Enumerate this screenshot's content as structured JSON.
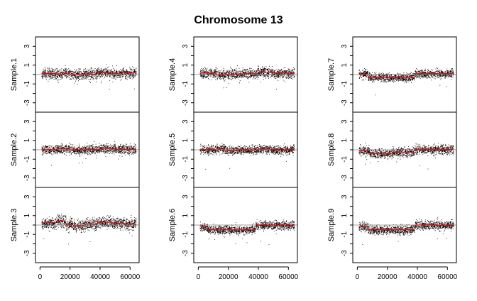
{
  "chart_data": {
    "type": "scatter",
    "title": "Chromosome 13",
    "x_ticks": [
      "0",
      "20000",
      "40000",
      "60000"
    ],
    "xlim": [
      -3000,
      66000
    ],
    "y_ticks": [
      "-3",
      "-1",
      "1",
      "3"
    ],
    "y_minor_ticks": [
      -2,
      0,
      2
    ],
    "ylim": [
      -4,
      4
    ],
    "grid": false,
    "colors": {
      "points": "#000000",
      "segments": "#ff0000",
      "zero_line": "#808080"
    },
    "panels": [
      {
        "name": "Sample.1",
        "column": 0,
        "row": 0,
        "noise": 0.26,
        "segments": [
          {
            "x0": 1000,
            "x1": 10000,
            "y": 0.12
          },
          {
            "x0": 10000,
            "x1": 15000,
            "y": 0.05
          },
          {
            "x0": 15000,
            "x1": 20000,
            "y": 0.15
          },
          {
            "x0": 20000,
            "x1": 27000,
            "y": 0.0
          },
          {
            "x0": 27000,
            "x1": 38000,
            "y": 0.05
          },
          {
            "x0": 38000,
            "x1": 48000,
            "y": 0.18
          },
          {
            "x0": 48000,
            "x1": 55000,
            "y": 0.1
          },
          {
            "x0": 55000,
            "x1": 64000,
            "y": 0.18
          }
        ]
      },
      {
        "name": "Sample.2",
        "column": 0,
        "row": 1,
        "noise": 0.24,
        "segments": [
          {
            "x0": 1000,
            "x1": 12000,
            "y": 0.02
          },
          {
            "x0": 12000,
            "x1": 20000,
            "y": 0.1
          },
          {
            "x0": 20000,
            "x1": 30000,
            "y": 0.0
          },
          {
            "x0": 30000,
            "x1": 40000,
            "y": 0.05
          },
          {
            "x0": 40000,
            "x1": 50000,
            "y": 0.12
          },
          {
            "x0": 50000,
            "x1": 64000,
            "y": 0.05
          }
        ]
      },
      {
        "name": "Sample.3",
        "column": 0,
        "row": 2,
        "noise": 0.3,
        "segments": [
          {
            "x0": 1000,
            "x1": 11000,
            "y": 0.25
          },
          {
            "x0": 11000,
            "x1": 17000,
            "y": 0.45
          },
          {
            "x0": 17000,
            "x1": 22000,
            "y": 0.05
          },
          {
            "x0": 22000,
            "x1": 30000,
            "y": -0.1
          },
          {
            "x0": 30000,
            "x1": 38000,
            "y": 0.1
          },
          {
            "x0": 38000,
            "x1": 48000,
            "y": 0.3
          },
          {
            "x0": 48000,
            "x1": 56000,
            "y": 0.2
          },
          {
            "x0": 56000,
            "x1": 64000,
            "y": 0.1
          }
        ]
      },
      {
        "name": "Sample.4",
        "column": 1,
        "row": 0,
        "noise": 0.26,
        "segments": [
          {
            "x0": 1000,
            "x1": 12000,
            "y": 0.15
          },
          {
            "x0": 12000,
            "x1": 20000,
            "y": 0.0
          },
          {
            "x0": 20000,
            "x1": 30000,
            "y": 0.05
          },
          {
            "x0": 30000,
            "x1": 40000,
            "y": 0.1
          },
          {
            "x0": 40000,
            "x1": 50000,
            "y": 0.25
          },
          {
            "x0": 50000,
            "x1": 64000,
            "y": 0.15
          }
        ]
      },
      {
        "name": "Sample.5",
        "column": 1,
        "row": 1,
        "noise": 0.22,
        "segments": [
          {
            "x0": 1000,
            "x1": 12000,
            "y": 0.02
          },
          {
            "x0": 12000,
            "x1": 18000,
            "y": 0.1
          },
          {
            "x0": 18000,
            "x1": 25000,
            "y": -0.1
          },
          {
            "x0": 25000,
            "x1": 40000,
            "y": 0.0
          },
          {
            "x0": 40000,
            "x1": 48000,
            "y": 0.08
          },
          {
            "x0": 48000,
            "x1": 64000,
            "y": 0.0
          }
        ]
      },
      {
        "name": "Sample.6",
        "column": 1,
        "row": 2,
        "noise": 0.22,
        "segments": [
          {
            "x0": 1000,
            "x1": 6000,
            "y": -0.2
          },
          {
            "x0": 6000,
            "x1": 38000,
            "y": -0.5
          },
          {
            "x0": 38000,
            "x1": 64000,
            "y": 0.0
          }
        ]
      },
      {
        "name": "Sample.7",
        "column": 2,
        "row": 0,
        "noise": 0.22,
        "segments": [
          {
            "x0": 1000,
            "x1": 7000,
            "y": 0.05
          },
          {
            "x0": 7000,
            "x1": 20000,
            "y": -0.3
          },
          {
            "x0": 20000,
            "x1": 38000,
            "y": -0.3
          },
          {
            "x0": 38000,
            "x1": 64000,
            "y": 0.1
          }
        ]
      },
      {
        "name": "Sample.8",
        "column": 2,
        "row": 1,
        "noise": 0.24,
        "segments": [
          {
            "x0": 1000,
            "x1": 8000,
            "y": -0.1
          },
          {
            "x0": 8000,
            "x1": 24000,
            "y": -0.4
          },
          {
            "x0": 24000,
            "x1": 38000,
            "y": -0.25
          },
          {
            "x0": 38000,
            "x1": 64000,
            "y": 0.05
          }
        ]
      },
      {
        "name": "Sample.9",
        "column": 2,
        "row": 2,
        "noise": 0.24,
        "segments": [
          {
            "x0": 1000,
            "x1": 7000,
            "y": -0.2
          },
          {
            "x0": 7000,
            "x1": 38000,
            "y": -0.5
          },
          {
            "x0": 38000,
            "x1": 64000,
            "y": 0.0
          }
        ]
      }
    ]
  }
}
